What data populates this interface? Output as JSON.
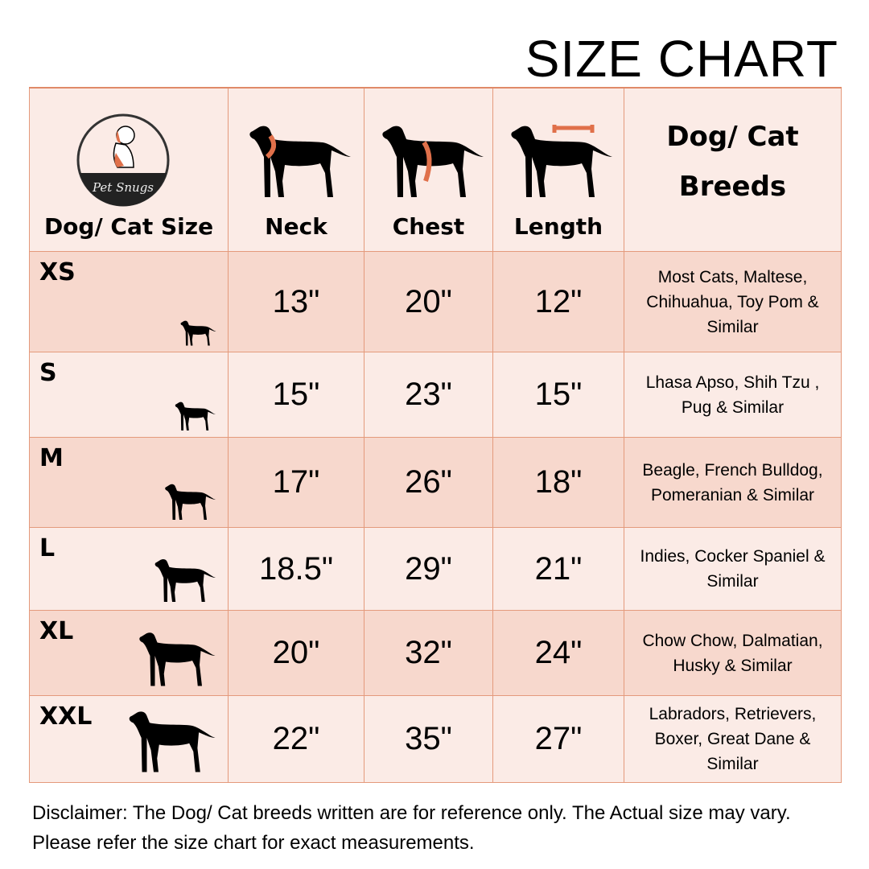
{
  "title": "SIZE CHART",
  "logo_text": "Pet Snugs",
  "headers": {
    "size": "Dog/ Cat Size",
    "neck": "Neck",
    "chest": "Chest",
    "length": "Length",
    "breeds": "Dog/ Cat Breeds"
  },
  "rows": [
    {
      "size": "XS",
      "neck": "13\"",
      "chest": "20\"",
      "length": "12\"",
      "breeds": "Most Cats, Maltese, Chihuahua, Toy Pom & Similar"
    },
    {
      "size": "S",
      "neck": "15\"",
      "chest": "23\"",
      "length": "15\"",
      "breeds": "Lhasa Apso, Shih Tzu , Pug & Similar"
    },
    {
      "size": "M",
      "neck": "17\"",
      "chest": "26\"",
      "length": "18\"",
      "breeds": "Beagle, French Bulldog, Pomeranian & Similar"
    },
    {
      "size": "L",
      "neck": "18.5\"",
      "chest": "29\"",
      "length": "21\"",
      "breeds": "Indies, Cocker Spaniel & Similar"
    },
    {
      "size": "XL",
      "neck": "20\"",
      "chest": "32\"",
      "length": "24\"",
      "breeds": "Chow Chow, Dalmatian, Husky & Similar"
    },
    {
      "size": "XXL",
      "neck": "22\"",
      "chest": "35\"",
      "length": "27\"",
      "breeds": "Labradors, Retrievers, Boxer, Great Dane & Similar"
    }
  ],
  "disclaimer": "Disclaimer: The Dog/ Cat breeds written are for reference only. The Actual size may vary. Please refer the size chart for exact measurements.",
  "colors": {
    "accent": "#e0704a",
    "border": "#e49a7c",
    "row_light": "#fbebe6",
    "row_dark": "#f7d8cd"
  }
}
